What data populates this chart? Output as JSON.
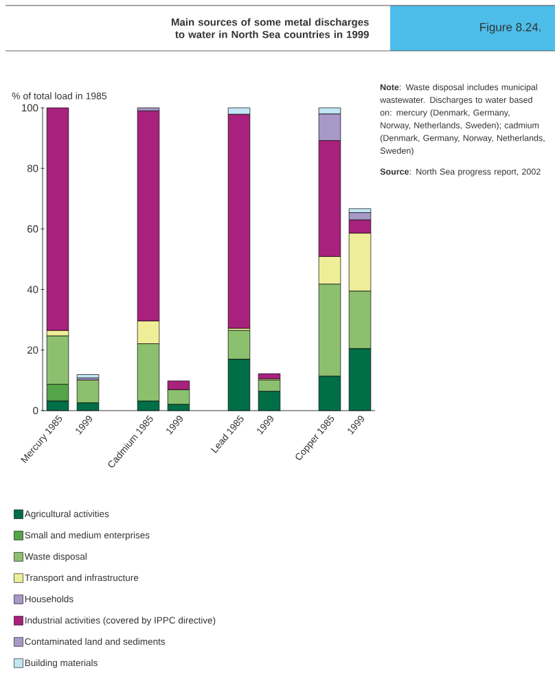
{
  "chart_data": {
    "type": "bar",
    "stacked": true,
    "title": "Main sources of some metal discharges to water in North Sea countries in 1999",
    "ylabel": "% of total load in 1985",
    "categories": [
      "Mercury 1985",
      "1999",
      null,
      "Cadmium 1985",
      "1999",
      null,
      "Lead 1985",
      "1999",
      null,
      "Copper 1985",
      "1999"
    ],
    "series": [
      {
        "name": "Agricultural activities",
        "color": "#006e46",
        "values": [
          3.2,
          2.6,
          null,
          3.2,
          2.1,
          null,
          17.0,
          6.4,
          null,
          11.4,
          20.5
        ]
      },
      {
        "name": "Small and medium enterprises",
        "color": "#55a447",
        "values": [
          5.5,
          0,
          null,
          0,
          0,
          null,
          0,
          0,
          null,
          0,
          0
        ]
      },
      {
        "name": "Waste disposal",
        "color": "#8cc06e",
        "values": [
          16.0,
          7.5,
          null,
          18.9,
          4.8,
          null,
          9.5,
          3.7,
          null,
          30.4,
          19.0
        ]
      },
      {
        "name": "Transport and infrastructure",
        "color": "#eeee99",
        "values": [
          1.8,
          0,
          null,
          7.5,
          0,
          null,
          0.7,
          0.4,
          null,
          9.1,
          19.1
        ]
      },
      {
        "name": "Households",
        "color": "#a898c8",
        "values": [
          0,
          0.7,
          null,
          0,
          0,
          null,
          0,
          0,
          null,
          0,
          0
        ]
      },
      {
        "name": "Industrial activities (covered by IPPC directive)",
        "color": "#a8217c",
        "values": [
          73.5,
          0,
          null,
          69.4,
          2.9,
          null,
          70.7,
          1.7,
          null,
          38.3,
          4.4
        ]
      },
      {
        "name": "Contaminated land and sediments",
        "color": "#a898c8",
        "values": [
          0,
          0,
          null,
          1.0,
          0,
          null,
          0,
          0,
          null,
          8.8,
          2.4
        ]
      },
      {
        "name": "Building materials",
        "color": "#c3e6f6",
        "values": [
          0,
          1.1,
          null,
          0,
          0,
          null,
          2.1,
          0,
          null,
          2.0,
          1.3
        ]
      }
    ],
    "ylim": [
      0,
      100
    ],
    "yticks": [
      0,
      20,
      40,
      60,
      80,
      100
    ],
    "grid": false,
    "legend": "bottom",
    "annotations": [
      "Figure 8.24.",
      "**Note**: Waste disposal includes municipal wastewater. Discharges to water based on: mercury (Denmark, Germany, Norway, Netherlands, Sweden); cadmium (Denmark, Germany, Norway, Netherlands, Sweden)",
      "**Source**: North Sea progress report, 2002"
    ]
  }
}
